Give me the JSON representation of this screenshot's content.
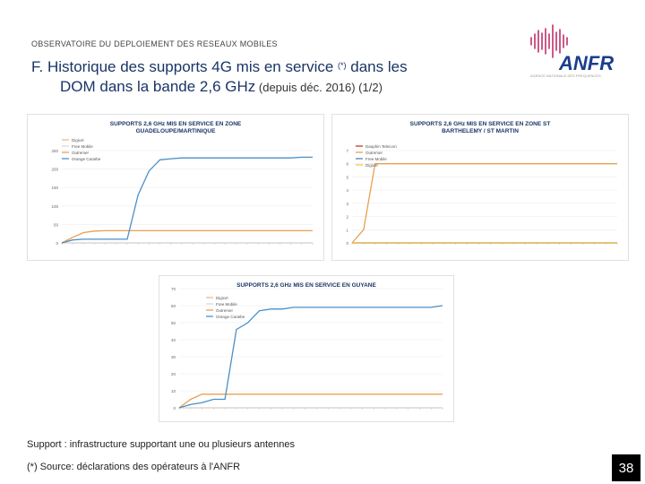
{
  "header": {
    "section_label": "OBSERVATOIRE DU DEPLOIEMENT DES RESEAUX MOBILES",
    "title_line1": "F. Historique des supports 4G mis en service",
    "title_sup": "(*)",
    "title_line1_end": " dans les",
    "title_line2": "DOM dans la bande 2,6 GHz",
    "title_line2_small": " (depuis déc. 2016) (1/2)"
  },
  "logo": {
    "text": "ANFR",
    "tagline": "AGENCE NATIONALE DES FRÉQUENCES"
  },
  "footer": {
    "support_note": "Support : infrastructure supportant une ou plusieurs antennes",
    "source_note": "(*) Source: déclarations des opérateurs à l'ANFR",
    "page_number": "38"
  },
  "chart_data": [
    {
      "type": "line",
      "title": "SUPPORTS 2,6 GHz MIS EN SERVICE  EN ZONE GUADELOUPE/MARTINIQUE",
      "ylim": [
        0,
        250
      ],
      "yticks": [
        0,
        50,
        100,
        150,
        200,
        250
      ],
      "series": [
        {
          "name": "Digicel",
          "color": "#f2b880",
          "values": [
            0,
            0,
            0,
            0,
            0,
            0,
            0,
            0,
            0,
            0,
            0,
            0,
            0,
            0,
            0,
            0,
            0,
            0,
            0,
            0,
            0,
            0,
            0,
            0
          ]
        },
        {
          "name": "Free Mobile",
          "color": "#d9d9d9",
          "values": [
            0,
            0,
            0,
            0,
            0,
            0,
            0,
            0,
            0,
            0,
            0,
            0,
            0,
            0,
            0,
            0,
            0,
            0,
            0,
            0,
            0,
            0,
            0,
            0
          ]
        },
        {
          "name": "Outremer",
          "color": "#e8a050",
          "values": [
            0,
            15,
            28,
            32,
            33,
            33,
            33,
            33,
            33,
            33,
            33,
            33,
            33,
            33,
            33,
            33,
            33,
            33,
            33,
            33,
            33,
            33,
            33,
            33
          ]
        },
        {
          "name": "Orange Caraïbe",
          "color": "#4a90c8",
          "values": [
            0,
            8,
            10,
            10,
            10,
            10,
            10,
            130,
            195,
            225,
            228,
            230,
            230,
            230,
            230,
            230,
            230,
            230,
            230,
            230,
            230,
            230,
            232,
            232
          ]
        }
      ]
    },
    {
      "type": "line",
      "title": "SUPPORTS 2,6 GHz MIS EN SERVICE  EN ZONE ST BARTHELEMY / ST MARTIN",
      "ylim": [
        0,
        7
      ],
      "yticks": [
        0,
        1,
        2,
        3,
        4,
        5,
        6,
        7
      ],
      "series": [
        {
          "name": "Dauphin Telecom",
          "color": "#c0392b",
          "values": [
            0,
            0,
            0,
            0,
            0,
            0,
            0,
            0,
            0,
            0,
            0,
            0,
            0,
            0,
            0,
            0,
            0,
            0,
            0,
            0,
            0,
            0,
            0,
            0
          ]
        },
        {
          "name": "Outremer",
          "color": "#e8a050",
          "values": [
            0,
            1,
            6,
            6,
            6,
            6,
            6,
            6,
            6,
            6,
            6,
            6,
            6,
            6,
            6,
            6,
            6,
            6,
            6,
            6,
            6,
            6,
            6,
            6
          ]
        },
        {
          "name": "Free Mobile",
          "color": "#5b7fb8",
          "values": [
            0,
            0,
            0,
            0,
            0,
            0,
            0,
            0,
            0,
            0,
            0,
            0,
            0,
            0,
            0,
            0,
            0,
            0,
            0,
            0,
            0,
            0,
            0,
            0
          ]
        },
        {
          "name": "Digicel",
          "color": "#f2c94c",
          "values": [
            0,
            0,
            0,
            0,
            0,
            0,
            0,
            0,
            0,
            0,
            0,
            0,
            0,
            0,
            0,
            0,
            0,
            0,
            0,
            0,
            0,
            0,
            0,
            0
          ]
        }
      ]
    },
    {
      "type": "line",
      "title": "SUPPORTS 2,6 GHz MIS EN SERVICE EN GUYANE",
      "ylim": [
        0,
        70
      ],
      "yticks": [
        0,
        10,
        20,
        30,
        40,
        50,
        60,
        70
      ],
      "series": [
        {
          "name": "Digicel",
          "color": "#f2b880",
          "values": [
            0,
            0,
            0,
            0,
            0,
            0,
            0,
            0,
            0,
            0,
            0,
            0,
            0,
            0,
            0,
            0,
            0,
            0,
            0,
            0,
            0,
            0,
            0,
            0
          ]
        },
        {
          "name": "Free Mobile",
          "color": "#d9d9d9",
          "values": [
            0,
            0,
            0,
            0,
            0,
            0,
            0,
            0,
            0,
            0,
            0,
            0,
            0,
            0,
            0,
            0,
            0,
            0,
            0,
            0,
            0,
            0,
            0,
            0
          ]
        },
        {
          "name": "Outremer",
          "color": "#e8a050",
          "values": [
            0,
            5,
            8,
            8,
            8,
            8,
            8,
            8,
            8,
            8,
            8,
            8,
            8,
            8,
            8,
            8,
            8,
            8,
            8,
            8,
            8,
            8,
            8,
            8
          ]
        },
        {
          "name": "Orange Caraïbe",
          "color": "#4a90c8",
          "values": [
            0,
            2,
            3,
            5,
            5,
            46,
            50,
            57,
            58,
            58,
            59,
            59,
            59,
            59,
            59,
            59,
            59,
            59,
            59,
            59,
            59,
            59,
            59,
            60
          ]
        }
      ]
    }
  ]
}
